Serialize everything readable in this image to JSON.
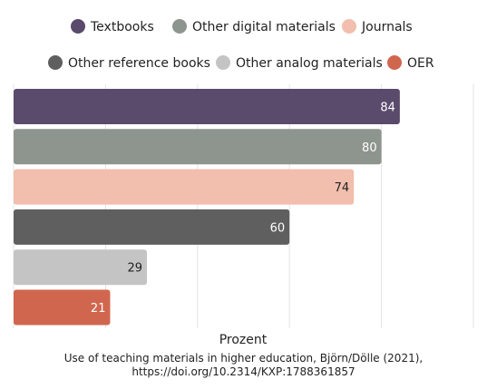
{
  "chart_data": {
    "type": "bar",
    "orientation": "horizontal",
    "xlabel": "Prozent",
    "xlim": [
      0,
      100
    ],
    "grid": true,
    "legend_position": "top",
    "categories": [
      "Textbooks",
      "Other digital materials",
      "Journals",
      "Other reference books",
      "Other analog materials",
      "OER"
    ],
    "values": [
      84,
      80,
      74,
      60,
      29,
      21
    ],
    "colors": [
      "#5a4a6b",
      "#8e958e",
      "#f2bead",
      "#5f5f5f",
      "#c4c4c4",
      "#d1664f"
    ],
    "label_colors": [
      "#ffffff",
      "#ffffff",
      "#222222",
      "#ffffff",
      "#222222",
      "#ffffff"
    ]
  },
  "caption": "Use of teaching materials in higher education, Björn/Dölle (2021), https://doi.org/10.2314/KXP:1788361857"
}
